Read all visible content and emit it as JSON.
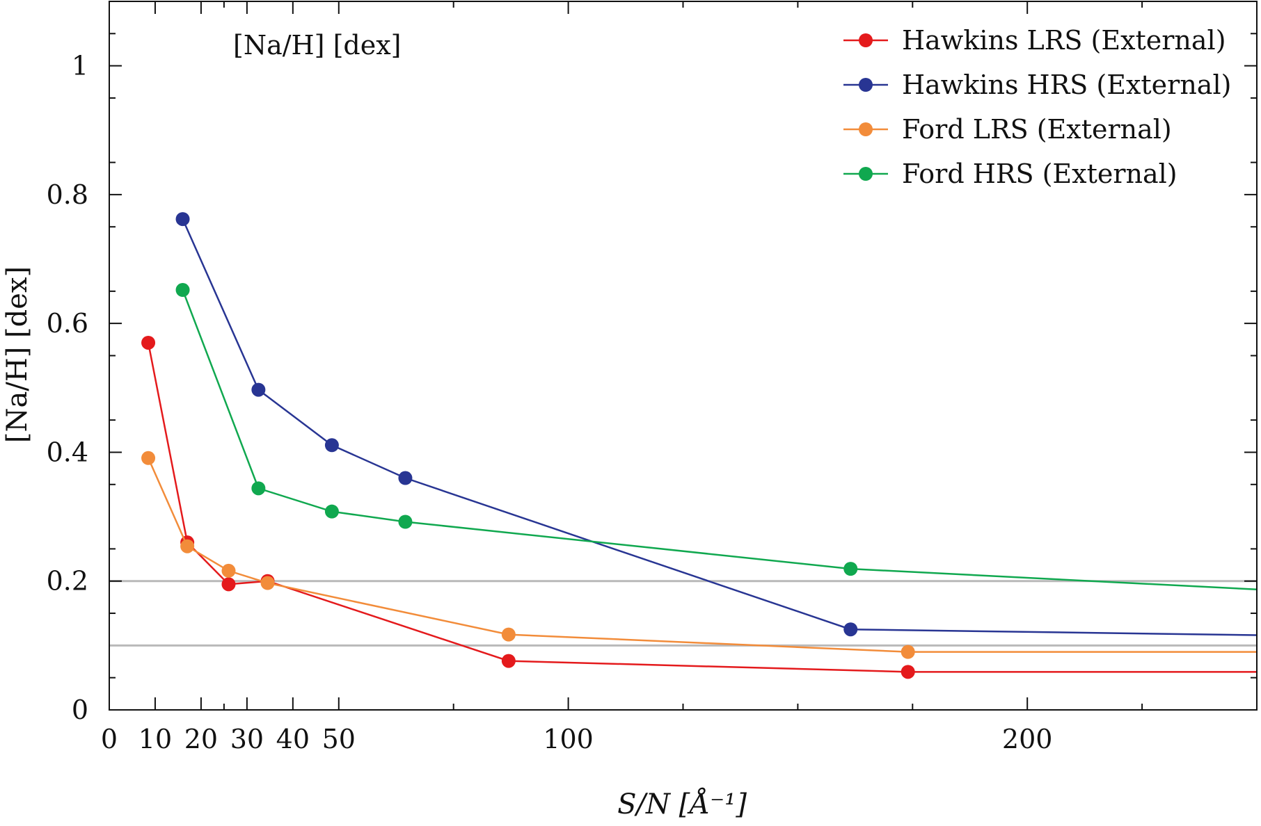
{
  "chart_data": {
    "type": "line",
    "inset_title": "[Na/H] [dex]",
    "xlabel": "S/N [Å⁻¹]",
    "ylabel": "[Na/H] [dex]",
    "xlim": [
      0,
      250
    ],
    "ylim": [
      0,
      1.1
    ],
    "x_ticks": [
      0,
      10,
      20,
      30,
      40,
      50,
      100,
      200
    ],
    "y_ticks": [
      0,
      0.2,
      0.4,
      0.6,
      0.8,
      1
    ],
    "y_tick_labels": [
      "0",
      "0.2",
      "0.4",
      "0.6",
      "0.8",
      "1"
    ],
    "reference_lines": [
      0.2,
      0.1
    ],
    "grid": false,
    "legend_position": "top-right",
    "series": [
      {
        "name": "Hawkins LRS (External)",
        "color": "#e41a1c",
        "x": [
          8.5,
          17.0,
          26.0,
          34.5,
          87.0,
          174.0,
          250
        ],
        "y": [
          0.57,
          0.26,
          0.195,
          0.2,
          0.076,
          0.059,
          0.059
        ]
      },
      {
        "name": "Hawkins HRS (External)",
        "color": "#283593",
        "x": [
          16.0,
          32.5,
          48.5,
          64.5,
          161.5,
          250
        ],
        "y": [
          0.762,
          0.497,
          0.411,
          0.36,
          0.125,
          0.116
        ]
      },
      {
        "name": "Ford LRS (External)",
        "color": "#f28c3a",
        "x": [
          8.5,
          17.0,
          26.0,
          34.5,
          87.0,
          174.0,
          250
        ],
        "y": [
          0.391,
          0.254,
          0.216,
          0.197,
          0.117,
          0.09,
          0.09
        ]
      },
      {
        "name": "Ford HRS (External)",
        "color": "#10a84f",
        "x": [
          16.0,
          32.5,
          48.5,
          64.5,
          161.5,
          250
        ],
        "y": [
          0.652,
          0.344,
          0.308,
          0.292,
          0.219,
          0.187
        ]
      }
    ]
  }
}
